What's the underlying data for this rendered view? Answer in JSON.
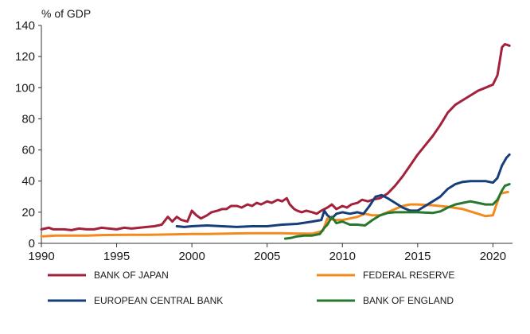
{
  "chart_data": {
    "type": "line",
    "title": "",
    "unit_label": "% of GDP",
    "xlabel": "",
    "ylabel": "% of GDP",
    "xlim": [
      1990,
      2021.3
    ],
    "ylim": [
      0,
      140
    ],
    "y_ticks": [
      0,
      20,
      40,
      60,
      80,
      100,
      120,
      140
    ],
    "x_ticks": [
      1990,
      1995,
      2000,
      2005,
      2010,
      2015,
      2020
    ],
    "y_tick_labels": [
      "0",
      "20",
      "40",
      "60",
      "80",
      "100",
      "120",
      "140"
    ],
    "x_tick_labels": [
      "1990",
      "1995",
      "2000",
      "2005",
      "2010",
      "2015",
      "2020"
    ],
    "grid": "none",
    "legend_position": "bottom",
    "series": [
      {
        "name": "BANK OF JAPAN",
        "color": "#a3213b",
        "points": [
          [
            1990.0,
            9
          ],
          [
            1990.5,
            10
          ],
          [
            1990.8,
            9
          ],
          [
            1991.5,
            9
          ],
          [
            1992.0,
            8.5
          ],
          [
            1992.5,
            9.5
          ],
          [
            1993.0,
            9
          ],
          [
            1993.5,
            9
          ],
          [
            1994.0,
            10
          ],
          [
            1994.5,
            9.5
          ],
          [
            1995.0,
            9
          ],
          [
            1995.5,
            10
          ],
          [
            1996.0,
            9.5
          ],
          [
            1996.5,
            10
          ],
          [
            1997.0,
            10.5
          ],
          [
            1997.5,
            11
          ],
          [
            1998.0,
            12
          ],
          [
            1998.4,
            17
          ],
          [
            1998.7,
            14
          ],
          [
            1999.0,
            17
          ],
          [
            1999.3,
            15
          ],
          [
            1999.7,
            14
          ],
          [
            2000.0,
            21
          ],
          [
            2000.3,
            18
          ],
          [
            2000.6,
            16
          ],
          [
            2001.0,
            18
          ],
          [
            2001.3,
            20
          ],
          [
            2001.7,
            21
          ],
          [
            2002.0,
            22
          ],
          [
            2002.3,
            22
          ],
          [
            2002.6,
            24
          ],
          [
            2003.0,
            24
          ],
          [
            2003.3,
            23
          ],
          [
            2003.7,
            25
          ],
          [
            2004.0,
            24
          ],
          [
            2004.3,
            26
          ],
          [
            2004.6,
            25
          ],
          [
            2005.0,
            27
          ],
          [
            2005.3,
            26
          ],
          [
            2005.7,
            28
          ],
          [
            2006.0,
            27
          ],
          [
            2006.3,
            29
          ],
          [
            2006.5,
            25
          ],
          [
            2006.8,
            22
          ],
          [
            2007.0,
            21
          ],
          [
            2007.3,
            20
          ],
          [
            2007.6,
            21
          ],
          [
            2008.0,
            20
          ],
          [
            2008.3,
            19
          ],
          [
            2008.6,
            21
          ],
          [
            2009.0,
            23
          ],
          [
            2009.3,
            25
          ],
          [
            2009.6,
            22
          ],
          [
            2010.0,
            24
          ],
          [
            2010.3,
            23
          ],
          [
            2010.6,
            25
          ],
          [
            2011.0,
            26
          ],
          [
            2011.3,
            28
          ],
          [
            2011.7,
            27
          ],
          [
            2012.0,
            28
          ],
          [
            2012.5,
            29
          ],
          [
            2013.0,
            32
          ],
          [
            2013.5,
            37
          ],
          [
            2014.0,
            43
          ],
          [
            2014.5,
            50
          ],
          [
            2015.0,
            57
          ],
          [
            2015.5,
            63
          ],
          [
            2016.0,
            69
          ],
          [
            2016.5,
            76
          ],
          [
            2017.0,
            84
          ],
          [
            2017.5,
            89
          ],
          [
            2018.0,
            92
          ],
          [
            2018.5,
            95
          ],
          [
            2019.0,
            98
          ],
          [
            2019.5,
            100
          ],
          [
            2020.0,
            102
          ],
          [
            2020.3,
            108
          ],
          [
            2020.6,
            126
          ],
          [
            2020.8,
            128
          ],
          [
            2021.1,
            127
          ]
        ]
      },
      {
        "name": "FEDERAL RESERVE",
        "color": "#f28a1e",
        "points": [
          [
            1990.0,
            4.5
          ],
          [
            1991.0,
            5
          ],
          [
            1992.0,
            5
          ],
          [
            1993.0,
            5
          ],
          [
            1994.0,
            5.3
          ],
          [
            1995.0,
            5.4
          ],
          [
            1996.0,
            5.5
          ],
          [
            1997.0,
            5.5
          ],
          [
            1998.0,
            5.6
          ],
          [
            1999.0,
            5.8
          ],
          [
            2000.0,
            6
          ],
          [
            2001.0,
            6
          ],
          [
            2002.0,
            6.2
          ],
          [
            2003.0,
            6.4
          ],
          [
            2004.0,
            6.5
          ],
          [
            2005.0,
            6.5
          ],
          [
            2006.0,
            6.5
          ],
          [
            2007.0,
            6.3
          ],
          [
            2008.0,
            6.2
          ],
          [
            2008.7,
            8
          ],
          [
            2009.0,
            16
          ],
          [
            2009.5,
            15
          ],
          [
            2010.0,
            15
          ],
          [
            2010.5,
            16
          ],
          [
            2011.0,
            17
          ],
          [
            2011.5,
            19
          ],
          [
            2012.0,
            18
          ],
          [
            2012.5,
            18
          ],
          [
            2013.0,
            20
          ],
          [
            2013.5,
            22
          ],
          [
            2014.0,
            24
          ],
          [
            2014.5,
            25
          ],
          [
            2015.0,
            25
          ],
          [
            2016.0,
            24.5
          ],
          [
            2017.0,
            23.5
          ],
          [
            2018.0,
            22
          ],
          [
            2019.0,
            19
          ],
          [
            2019.5,
            17.5
          ],
          [
            2020.0,
            18
          ],
          [
            2020.2,
            24
          ],
          [
            2020.5,
            32
          ],
          [
            2021.0,
            33
          ]
        ]
      },
      {
        "name": "EUROPEAN CENTRAL BANK",
        "color": "#163e7a",
        "points": [
          [
            1999.0,
            11
          ],
          [
            1999.5,
            10.5
          ],
          [
            2000.0,
            11
          ],
          [
            2001.0,
            11.5
          ],
          [
            2002.0,
            11
          ],
          [
            2003.0,
            10.5
          ],
          [
            2004.0,
            11
          ],
          [
            2005.0,
            11
          ],
          [
            2006.0,
            12
          ],
          [
            2007.0,
            12.5
          ],
          [
            2008.0,
            14
          ],
          [
            2008.6,
            15
          ],
          [
            2008.8,
            21
          ],
          [
            2009.0,
            18
          ],
          [
            2009.3,
            16
          ],
          [
            2009.6,
            19
          ],
          [
            2010.0,
            20
          ],
          [
            2010.5,
            19
          ],
          [
            2011.0,
            20
          ],
          [
            2011.4,
            19
          ],
          [
            2011.8,
            24
          ],
          [
            2012.2,
            30
          ],
          [
            2012.6,
            31
          ],
          [
            2013.0,
            29
          ],
          [
            2013.5,
            26
          ],
          [
            2014.0,
            23
          ],
          [
            2014.5,
            21
          ],
          [
            2015.0,
            21
          ],
          [
            2015.5,
            24
          ],
          [
            2016.0,
            27
          ],
          [
            2016.5,
            30
          ],
          [
            2017.0,
            35
          ],
          [
            2017.5,
            38
          ],
          [
            2018.0,
            39.5
          ],
          [
            2018.5,
            40
          ],
          [
            2019.0,
            40
          ],
          [
            2019.5,
            40
          ],
          [
            2020.0,
            39
          ],
          [
            2020.3,
            42
          ],
          [
            2020.6,
            50
          ],
          [
            2020.9,
            55
          ],
          [
            2021.1,
            57
          ]
        ]
      },
      {
        "name": "BANK OF ENGLAND",
        "color": "#27782f",
        "points": [
          [
            2006.2,
            3
          ],
          [
            2006.6,
            3.5
          ],
          [
            2007.0,
            4.5
          ],
          [
            2007.5,
            5
          ],
          [
            2008.0,
            5
          ],
          [
            2008.5,
            6
          ],
          [
            2008.8,
            10
          ],
          [
            2009.0,
            12
          ],
          [
            2009.3,
            17
          ],
          [
            2009.6,
            13
          ],
          [
            2010.0,
            14
          ],
          [
            2010.5,
            12
          ],
          [
            2011.0,
            12
          ],
          [
            2011.5,
            11.5
          ],
          [
            2012.0,
            15
          ],
          [
            2012.5,
            18
          ],
          [
            2013.0,
            19.5
          ],
          [
            2013.5,
            20
          ],
          [
            2014.0,
            20
          ],
          [
            2015.0,
            20
          ],
          [
            2016.0,
            19.5
          ],
          [
            2016.5,
            20.5
          ],
          [
            2017.0,
            23
          ],
          [
            2017.5,
            25
          ],
          [
            2018.0,
            26
          ],
          [
            2018.5,
            27
          ],
          [
            2019.0,
            26
          ],
          [
            2019.5,
            25
          ],
          [
            2020.0,
            25
          ],
          [
            2020.3,
            28
          ],
          [
            2020.6,
            34
          ],
          [
            2020.8,
            37
          ],
          [
            2021.1,
            38
          ]
        ]
      }
    ]
  }
}
